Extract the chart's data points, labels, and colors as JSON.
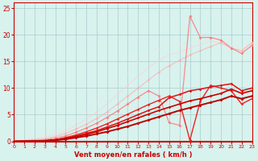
{
  "xlabel": "Vent moyen/en rafales ( km/h )",
  "bg_color": "#d8f2ee",
  "grid_color": "#aacccc",
  "label_color": "#cc0000",
  "xlim": [
    0,
    23
  ],
  "ylim": [
    0,
    26
  ],
  "xticks": [
    0,
    1,
    2,
    3,
    4,
    5,
    6,
    7,
    8,
    9,
    10,
    11,
    12,
    13,
    14,
    15,
    16,
    17,
    18,
    19,
    20,
    21,
    22,
    23
  ],
  "yticks": [
    0,
    5,
    10,
    15,
    20,
    25
  ],
  "lines": [
    {
      "x": [
        0,
        3,
        4,
        5,
        6,
        7,
        8,
        9,
        10,
        11,
        12,
        13,
        14,
        15,
        16,
        17,
        18,
        19,
        20,
        21,
        22,
        23
      ],
      "y": [
        0,
        0.1,
        0.2,
        0.4,
        0.7,
        1.0,
        1.4,
        1.8,
        2.3,
        2.8,
        3.4,
        4.0,
        4.6,
        5.2,
        5.8,
        6.3,
        6.8,
        7.3,
        7.8,
        8.5,
        8.0,
        8.5
      ],
      "color": "#bb0000",
      "lw": 1.4,
      "marker": "D",
      "ms": 2.0,
      "alpha": 1.0,
      "zorder": 10
    },
    {
      "x": [
        0,
        3,
        4,
        5,
        6,
        7,
        8,
        9,
        10,
        11,
        12,
        13,
        14,
        15,
        16,
        17,
        18,
        19,
        20,
        21,
        22,
        23
      ],
      "y": [
        0,
        0.1,
        0.3,
        0.5,
        0.9,
        1.3,
        1.8,
        2.4,
        3.0,
        3.7,
        4.4,
        5.1,
        5.8,
        6.4,
        7.0,
        7.6,
        8.0,
        8.5,
        9.0,
        9.8,
        9.0,
        9.5
      ],
      "color": "#cc0000",
      "lw": 1.2,
      "marker": "D",
      "ms": 1.8,
      "alpha": 1.0,
      "zorder": 9
    },
    {
      "x": [
        0,
        3,
        4,
        5,
        6,
        7,
        8,
        9,
        10,
        11,
        12,
        13,
        14,
        15,
        16,
        17,
        18,
        19,
        20,
        21,
        22,
        23
      ],
      "y": [
        0,
        0.1,
        0.3,
        0.6,
        1.0,
        1.5,
        2.0,
        2.7,
        3.4,
        4.2,
        5.0,
        5.8,
        6.5,
        8.2,
        8.8,
        9.5,
        9.8,
        10.2,
        10.5,
        10.8,
        9.5,
        10.0
      ],
      "color": "#dd1111",
      "lw": 1.1,
      "marker": "D",
      "ms": 1.8,
      "alpha": 1.0,
      "zorder": 8
    },
    {
      "x": [
        0,
        3,
        4,
        5,
        6,
        7,
        8,
        9,
        10,
        11,
        12,
        13,
        14,
        15,
        16,
        17,
        18,
        19,
        20,
        21,
        22,
        23
      ],
      "y": [
        0,
        0.1,
        0.3,
        0.7,
        1.2,
        1.8,
        2.5,
        3.3,
        4.2,
        5.1,
        6.0,
        6.9,
        7.7,
        8.5,
        7.5,
        0.2,
        7.5,
        10.5,
        10.0,
        9.5,
        7.0,
        8.0
      ],
      "color": "#ee2222",
      "lw": 1.0,
      "marker": "D",
      "ms": 1.8,
      "alpha": 1.0,
      "zorder": 7
    },
    {
      "x": [
        0,
        3,
        4,
        5,
        6,
        7,
        8,
        9,
        10,
        11,
        12,
        13,
        14,
        15,
        16,
        17,
        18,
        19,
        20,
        21,
        22,
        23
      ],
      "y": [
        0,
        0.3,
        0.6,
        1.0,
        1.7,
        2.5,
        3.4,
        4.5,
        5.7,
        7.0,
        8.3,
        9.5,
        8.5,
        3.5,
        3.0,
        23.5,
        19.5,
        19.5,
        19.0,
        17.5,
        16.5,
        18.0
      ],
      "color": "#ff7777",
      "lw": 0.9,
      "marker": "D",
      "ms": 2.0,
      "alpha": 0.85,
      "zorder": 5
    },
    {
      "x": [
        0,
        3,
        4,
        5,
        6,
        7,
        8,
        9,
        10,
        11,
        12,
        13,
        14,
        15,
        16,
        17,
        18,
        19,
        20,
        21,
        22,
        23
      ],
      "y": [
        0,
        0.5,
        0.9,
        1.5,
        2.3,
        3.2,
        4.3,
        5.5,
        7.0,
        8.5,
        10.0,
        11.5,
        13.0,
        14.2,
        15.2,
        16.2,
        17.0,
        17.8,
        18.5,
        17.5,
        17.0,
        18.5
      ],
      "color": "#ffaaaa",
      "lw": 0.8,
      "marker": "D",
      "ms": 1.8,
      "alpha": 0.7,
      "zorder": 4
    },
    {
      "x": [
        0,
        3,
        4,
        5,
        6,
        7,
        8,
        9,
        10,
        11,
        12,
        13,
        14,
        15,
        16,
        17,
        18,
        19,
        20,
        21,
        22,
        23
      ],
      "y": [
        0,
        0.8,
        1.3,
        2.0,
        3.0,
        4.2,
        5.5,
        7.0,
        8.8,
        10.5,
        12.2,
        13.8,
        15.2,
        16.2,
        16.8,
        17.5,
        18.2,
        18.8,
        18.5,
        17.5,
        17.0,
        18.5
      ],
      "color": "#ffcccc",
      "lw": 0.7,
      "marker": "D",
      "ms": 1.5,
      "alpha": 0.55,
      "zorder": 3
    },
    {
      "x": [
        0,
        3,
        4,
        5,
        6,
        7,
        8,
        9,
        10,
        11,
        12,
        13,
        14,
        15,
        16,
        17,
        18,
        19,
        20,
        21,
        22,
        23
      ],
      "y": [
        0,
        1.2,
        1.8,
        2.8,
        4.0,
        5.5,
        7.2,
        9.0,
        11.0,
        13.0,
        15.0,
        16.5,
        17.5,
        17.8,
        18.2,
        18.5,
        19.0,
        19.2,
        18.8,
        18.0,
        17.5,
        18.8
      ],
      "color": "#ffe0e0",
      "lw": 0.6,
      "marker": "D",
      "ms": 1.2,
      "alpha": 0.4,
      "zorder": 2
    }
  ]
}
